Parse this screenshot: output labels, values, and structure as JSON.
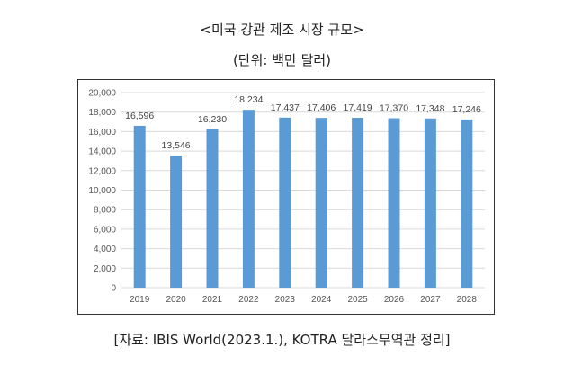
{
  "header": {
    "title": "<미국 강관 제조 시장 규모>",
    "unit": "(단위: 백만 달러)"
  },
  "footer": {
    "source": "[자료: IBIS World(2023.1.), KOTRA 달라스무역관 정리]"
  },
  "colors": {
    "bar": "#5b9bd5",
    "grid": "#d9d9d9"
  },
  "chart_data": {
    "type": "bar",
    "title": "<미국 강관 제조 시장 규모>",
    "subtitle": "(단위: 백만 달러)",
    "categories": [
      "2019",
      "2020",
      "2021",
      "2022",
      "2023",
      "2024",
      "2025",
      "2026",
      "2027",
      "2028"
    ],
    "values": [
      16596,
      13546,
      16230,
      18234,
      17437,
      17406,
      17419,
      17370,
      17348,
      17246
    ],
    "value_labels": [
      "16,596",
      "13,546",
      "16,230",
      "18,234",
      "17,437",
      "17,406",
      "17,419",
      "17,370",
      "17,348",
      "17,246"
    ],
    "yticks": [
      0,
      2000,
      4000,
      6000,
      8000,
      10000,
      12000,
      14000,
      16000,
      18000,
      20000
    ],
    "ytick_labels": [
      "0",
      "2,000",
      "4,000",
      "6,000",
      "8,000",
      "10,000",
      "12,000",
      "14,000",
      "16,000",
      "18,000",
      "20,000"
    ],
    "ylim": [
      0,
      20000
    ],
    "grid": true,
    "legend": "none",
    "xlabel": "",
    "ylabel": ""
  }
}
